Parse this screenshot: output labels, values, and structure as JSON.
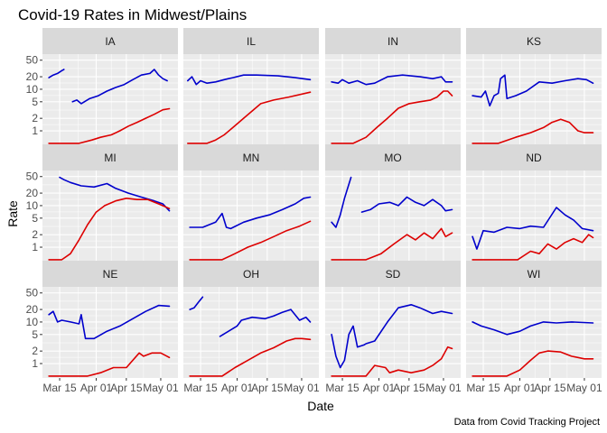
{
  "chart_data": {
    "type": "line",
    "title": "Covid-19 Rates in Midwest/Plains",
    "xlabel": "Date",
    "ylabel": "Rate",
    "caption": "Data from Covid Tracking Project",
    "y_scale": "log",
    "ylim": [
      0.45,
      70
    ],
    "y_ticks": [
      1,
      2,
      5,
      10,
      20,
      50
    ],
    "y_tick_labels": [
      "1",
      "2",
      "5",
      "10",
      "20",
      "50"
    ],
    "xlim": [
      "2020-03-07",
      "2020-05-09"
    ],
    "x_ticks": [
      "2020-03-15",
      "2020-04-01",
      "2020-04-15",
      "2020-05-01"
    ],
    "x_tick_labels": [
      "Mar 15",
      "Apr 01",
      "Apr 15",
      "May 01"
    ],
    "grid": true,
    "legend": "none",
    "series_colors": {
      "blue": "#0000cc",
      "red": "#dd0000"
    },
    "panels": [
      {
        "label": "IA",
        "blue": [
          {
            "x": [
              "2020-03-10",
              "2020-03-12",
              "2020-03-14",
              "2020-03-16",
              "2020-03-17"
            ],
            "y": [
              19,
              22,
              24,
              28,
              30
            ]
          },
          {
            "x": [
              "2020-03-21",
              "2020-03-23",
              "2020-03-25",
              "2020-03-29",
              "2020-04-02",
              "2020-04-06",
              "2020-04-10",
              "2020-04-14",
              "2020-04-18",
              "2020-04-22",
              "2020-04-26",
              "2020-04-28",
              "2020-04-30",
              "2020-05-02",
              "2020-05-04"
            ],
            "y": [
              5,
              5.5,
              4.5,
              6,
              7,
              9,
              11,
              13,
              17,
              22,
              24,
              30,
              22,
              18,
              16
            ]
          }
        ],
        "red": {
          "x": [
            "2020-03-10",
            "2020-03-24",
            "2020-03-30",
            "2020-04-03",
            "2020-04-08",
            "2020-04-12",
            "2020-04-16",
            "2020-04-20",
            "2020-04-24",
            "2020-04-28",
            "2020-05-02",
            "2020-05-05"
          ],
          "y": [
            0.5,
            0.5,
            0.6,
            0.7,
            0.8,
            1.0,
            1.3,
            1.6,
            2.0,
            2.5,
            3.2,
            3.4
          ]
        }
      },
      {
        "label": "IL",
        "blue": [
          {
            "x": [
              "2020-03-09",
              "2020-03-11",
              "2020-03-13",
              "2020-03-15",
              "2020-03-18",
              "2020-03-22",
              "2020-03-26",
              "2020-03-30",
              "2020-04-04",
              "2020-04-10",
              "2020-04-20",
              "2020-04-28",
              "2020-05-05"
            ],
            "y": [
              16,
              20,
              13,
              16,
              14,
              15,
              17,
              19,
              22,
              22,
              21,
              19,
              17
            ]
          }
        ],
        "red": {
          "x": [
            "2020-03-09",
            "2020-03-18",
            "2020-03-22",
            "2020-03-26",
            "2020-03-30",
            "2020-04-04",
            "2020-04-08",
            "2020-04-12",
            "2020-04-18",
            "2020-04-25",
            "2020-05-05"
          ],
          "y": [
            0.5,
            0.5,
            0.6,
            0.8,
            1.2,
            2.0,
            3.0,
            4.5,
            5.5,
            6.5,
            8.5
          ]
        }
      },
      {
        "label": "IN",
        "blue": [
          {
            "x": [
              "2020-03-10",
              "2020-03-13",
              "2020-03-15",
              "2020-03-18",
              "2020-03-22",
              "2020-03-26",
              "2020-03-30",
              "2020-04-05",
              "2020-04-12",
              "2020-04-20",
              "2020-04-26",
              "2020-04-30",
              "2020-05-02",
              "2020-05-05"
            ],
            "y": [
              15,
              14,
              17,
              14,
              16,
              13,
              14,
              20,
              22,
              20,
              18,
              20,
              15,
              15
            ]
          }
        ],
        "red": {
          "x": [
            "2020-03-10",
            "2020-03-20",
            "2020-03-26",
            "2020-03-31",
            "2020-04-05",
            "2020-04-10",
            "2020-04-15",
            "2020-04-20",
            "2020-04-25",
            "2020-04-28",
            "2020-05-01",
            "2020-05-03",
            "2020-05-05"
          ],
          "y": [
            0.5,
            0.5,
            0.7,
            1.2,
            2.0,
            3.5,
            4.5,
            5.0,
            5.5,
            6.5,
            9,
            9,
            7
          ]
        }
      },
      {
        "label": "KS",
        "blue": [
          {
            "x": [
              "2020-03-10",
              "2020-03-14",
              "2020-03-16",
              "2020-03-18",
              "2020-03-20",
              "2020-03-22",
              "2020-03-23",
              "2020-03-25",
              "2020-03-26",
              "2020-03-30",
              "2020-04-04",
              "2020-04-10",
              "2020-04-16",
              "2020-04-22",
              "2020-04-28",
              "2020-05-02",
              "2020-05-05"
            ],
            "y": [
              7,
              6.5,
              9,
              4,
              7,
              8,
              18,
              22,
              6,
              7,
              9,
              15,
              14,
              16,
              18,
              17,
              14
            ]
          }
        ],
        "red": {
          "x": [
            "2020-03-10",
            "2020-03-22",
            "2020-03-30",
            "2020-04-06",
            "2020-04-12",
            "2020-04-16",
            "2020-04-20",
            "2020-04-24",
            "2020-04-28",
            "2020-05-01",
            "2020-05-05"
          ],
          "y": [
            0.5,
            0.5,
            0.7,
            0.9,
            1.2,
            1.6,
            1.9,
            1.6,
            1.0,
            0.9,
            0.9
          ]
        }
      },
      {
        "label": "MI",
        "blue": [
          {
            "x": [
              "2020-03-15",
              "2020-03-17",
              "2020-03-20",
              "2020-03-25",
              "2020-03-31",
              "2020-04-06",
              "2020-04-10",
              "2020-04-16",
              "2020-04-22",
              "2020-04-28",
              "2020-05-02",
              "2020-05-05"
            ],
            "y": [
              48,
              42,
              36,
              30,
              28,
              34,
              26,
              20,
              16,
              13,
              11,
              7.5
            ]
          }
        ],
        "red": {
          "x": [
            "2020-03-10",
            "2020-03-16",
            "2020-03-20",
            "2020-03-24",
            "2020-03-28",
            "2020-04-01",
            "2020-04-05",
            "2020-04-10",
            "2020-04-15",
            "2020-04-20",
            "2020-04-25",
            "2020-04-30",
            "2020-05-05"
          ],
          "y": [
            0.5,
            0.5,
            0.7,
            1.5,
            3.5,
            7,
            10,
            13,
            15,
            14,
            14,
            11,
            8.5
          ]
        }
      },
      {
        "label": "MN",
        "blue": [
          {
            "x": [
              "2020-03-10",
              "2020-03-16",
              "2020-03-22",
              "2020-03-25",
              "2020-03-27",
              "2020-03-29",
              "2020-04-04",
              "2020-04-10",
              "2020-04-16",
              "2020-04-22",
              "2020-04-28",
              "2020-05-02",
              "2020-05-05"
            ],
            "y": [
              3,
              3,
              4,
              6.5,
              3,
              2.8,
              4,
              5,
              6,
              8,
              11,
              15,
              16
            ]
          }
        ],
        "red": {
          "x": [
            "2020-03-10",
            "2020-03-25",
            "2020-03-31",
            "2020-04-06",
            "2020-04-12",
            "2020-04-18",
            "2020-04-24",
            "2020-04-30",
            "2020-05-05"
          ],
          "y": [
            0.5,
            0.5,
            0.7,
            1.0,
            1.3,
            1.8,
            2.5,
            3.2,
            4.2
          ]
        }
      },
      {
        "label": "MO",
        "blue": [
          {
            "x": [
              "2020-03-10",
              "2020-03-12",
              "2020-03-14",
              "2020-03-16",
              "2020-03-19"
            ],
            "y": [
              4,
              3,
              6,
              15,
              48
            ]
          },
          {
            "x": [
              "2020-03-24",
              "2020-03-28",
              "2020-04-01",
              "2020-04-06",
              "2020-04-10",
              "2020-04-14",
              "2020-04-18",
              "2020-04-22",
              "2020-04-26",
              "2020-04-30",
              "2020-05-02",
              "2020-05-05"
            ],
            "y": [
              7,
              8,
              11,
              12,
              10,
              16,
              12,
              10,
              14,
              10,
              7.5,
              8
            ]
          }
        ],
        "red": {
          "x": [
            "2020-03-10",
            "2020-03-26",
            "2020-04-02",
            "2020-04-08",
            "2020-04-14",
            "2020-04-18",
            "2020-04-22",
            "2020-04-26",
            "2020-04-30",
            "2020-05-02",
            "2020-05-05"
          ],
          "y": [
            0.5,
            0.5,
            0.7,
            1.2,
            2.0,
            1.5,
            2.2,
            1.6,
            2.8,
            1.8,
            2.2
          ]
        }
      },
      {
        "label": "ND",
        "blue": [
          {
            "x": [
              "2020-03-10",
              "2020-03-12",
              "2020-03-15",
              "2020-03-20",
              "2020-03-26",
              "2020-04-01",
              "2020-04-06",
              "2020-04-12",
              "2020-04-18",
              "2020-04-22",
              "2020-04-26",
              "2020-04-30",
              "2020-05-05"
            ],
            "y": [
              1.8,
              0.9,
              2.5,
              2.3,
              3,
              2.8,
              3.2,
              3,
              9,
              6,
              4.5,
              2.8,
              2.5
            ]
          }
        ],
        "red": {
          "x": [
            "2020-03-10",
            "2020-03-31",
            "2020-04-06",
            "2020-04-10",
            "2020-04-14",
            "2020-04-18",
            "2020-04-22",
            "2020-04-26",
            "2020-04-30",
            "2020-05-03",
            "2020-05-05"
          ],
          "y": [
            0.5,
            0.5,
            0.8,
            0.7,
            1.2,
            0.9,
            1.3,
            1.6,
            1.3,
            2.0,
            1.7
          ]
        }
      },
      {
        "label": "NE",
        "blue": [
          {
            "x": [
              "2020-03-10",
              "2020-03-12",
              "2020-03-14",
              "2020-03-16",
              "2020-03-20",
              "2020-03-24",
              "2020-03-25",
              "2020-03-27",
              "2020-03-31",
              "2020-04-06",
              "2020-04-12",
              "2020-04-18",
              "2020-04-24",
              "2020-04-30",
              "2020-05-05"
            ],
            "y": [
              15,
              18,
              10,
              11,
              10,
              9,
              15,
              4,
              4,
              6,
              8,
              12,
              18,
              25,
              24
            ]
          }
        ],
        "red": {
          "x": [
            "2020-03-10",
            "2020-03-28",
            "2020-04-03",
            "2020-04-09",
            "2020-04-15",
            "2020-04-21",
            "2020-04-23",
            "2020-04-27",
            "2020-05-01",
            "2020-05-05"
          ],
          "y": [
            0.5,
            0.5,
            0.6,
            0.8,
            0.8,
            1.8,
            1.5,
            1.8,
            1.8,
            1.4
          ]
        }
      },
      {
        "label": "OH",
        "blue": [
          {
            "x": [
              "2020-03-10",
              "2020-03-12",
              "2020-03-14",
              "2020-03-16"
            ],
            "y": [
              20,
              22,
              30,
              40
            ]
          },
          {
            "x": [
              "2020-03-24",
              "2020-03-28",
              "2020-04-01",
              "2020-04-03",
              "2020-04-08",
              "2020-04-14",
              "2020-04-18",
              "2020-04-22",
              "2020-04-26",
              "2020-04-30",
              "2020-05-03",
              "2020-05-05"
            ],
            "y": [
              4.5,
              6,
              8,
              11,
              13,
              12,
              14,
              17,
              20,
              11,
              13,
              10
            ]
          }
        ],
        "red": {
          "x": [
            "2020-03-10",
            "2020-03-25",
            "2020-03-31",
            "2020-04-06",
            "2020-04-12",
            "2020-04-18",
            "2020-04-24",
            "2020-04-28",
            "2020-05-01",
            "2020-05-05"
          ],
          "y": [
            0.5,
            0.5,
            0.8,
            1.2,
            1.8,
            2.4,
            3.5,
            4.0,
            4.0,
            3.8
          ]
        }
      },
      {
        "label": "SD",
        "blue": [
          {
            "x": [
              "2020-03-10",
              "2020-03-12",
              "2020-03-14",
              "2020-03-16",
              "2020-03-18",
              "2020-03-20",
              "2020-03-22",
              "2020-03-25",
              "2020-03-26",
              "2020-03-30",
              "2020-04-05",
              "2020-04-10",
              "2020-04-16",
              "2020-04-20",
              "2020-04-26",
              "2020-04-30",
              "2020-05-05"
            ],
            "y": [
              5,
              1.5,
              0.8,
              1.2,
              5,
              8,
              2.5,
              2.8,
              3,
              3.5,
              10,
              22,
              26,
              22,
              16,
              18,
              16
            ]
          }
        ],
        "red": {
          "x": [
            "2020-03-10",
            "2020-03-26",
            "2020-03-30",
            "2020-04-04",
            "2020-04-06",
            "2020-04-10",
            "2020-04-16",
            "2020-04-22",
            "2020-04-26",
            "2020-04-30",
            "2020-05-03",
            "2020-05-05"
          ],
          "y": [
            0.5,
            0.5,
            0.9,
            0.8,
            0.6,
            0.7,
            0.6,
            0.7,
            0.9,
            1.3,
            2.5,
            2.3
          ]
        }
      },
      {
        "label": "WI",
        "blue": [
          {
            "x": [
              "2020-03-10",
              "2020-03-14",
              "2020-03-20",
              "2020-03-26",
              "2020-04-01",
              "2020-04-06",
              "2020-04-12",
              "2020-04-18",
              "2020-04-25",
              "2020-05-05"
            ],
            "y": [
              10,
              8,
              6.5,
              5,
              6,
              8,
              10,
              9.5,
              10,
              9.5
            ]
          }
        ],
        "red": {
          "x": [
            "2020-03-10",
            "2020-03-26",
            "2020-04-01",
            "2020-04-06",
            "2020-04-10",
            "2020-04-14",
            "2020-04-20",
            "2020-04-25",
            "2020-05-01",
            "2020-05-05"
          ],
          "y": [
            0.5,
            0.5,
            0.7,
            1.2,
            1.8,
            2.0,
            1.9,
            1.5,
            1.3,
            1.3
          ]
        }
      }
    ]
  }
}
